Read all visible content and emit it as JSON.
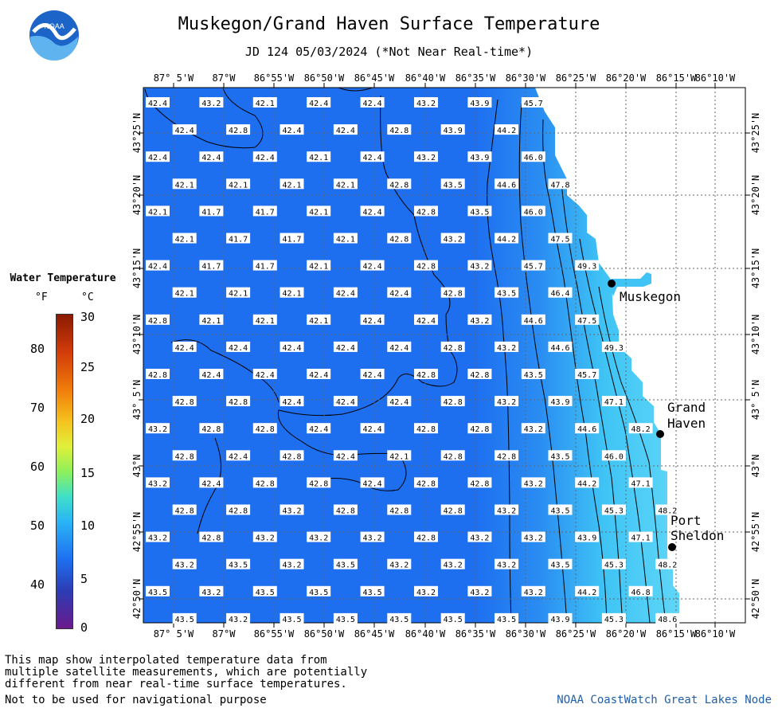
{
  "title": "Muskegon/Grand Haven Surface Temperature",
  "subtitle": "JD 124 05/03/2024 (*Not Near Real-time*)",
  "logo_text": "NOAA",
  "legend": {
    "title": "Water Temperature",
    "unit_f": "°F",
    "unit_c": "°C",
    "f_ticks": [
      "80",
      "70",
      "60",
      "50",
      "40"
    ],
    "c_ticks": [
      "30",
      "25",
      "20",
      "15",
      "10",
      "5",
      "0"
    ]
  },
  "lon_labels": [
    "87° 5'W",
    "87°W",
    "86°55'W",
    "86°50'W",
    "86°45'W",
    "86°40'W",
    "86°35'W",
    "86°30'W",
    "86°25'W",
    "86°20'W",
    "86°15'W",
    "86°10'W"
  ],
  "lat_labels": [
    "43°25'N",
    "43°20'N",
    "43°15'N",
    "43°10'N",
    "43° 5'N",
    "43°N",
    "42°55'N",
    "42°50'N"
  ],
  "cities": [
    {
      "name_lines": [
        "Muskegon"
      ]
    },
    {
      "name_lines": [
        "Grand",
        "Haven"
      ]
    },
    {
      "name_lines": [
        "Port",
        "Sheldon"
      ]
    }
  ],
  "rows": [
    [
      "42.4",
      "43.2",
      "42.1",
      "42.4",
      "42.4",
      "43.2",
      "43.9",
      "45.7"
    ],
    [
      "42.4",
      "42.8",
      "42.4",
      "42.4",
      "42.8",
      "43.9",
      "44.2"
    ],
    [
      "42.4",
      "42.4",
      "42.4",
      "42.1",
      "42.4",
      "43.2",
      "43.9",
      "46.0"
    ],
    [
      "42.1",
      "42.1",
      "42.1",
      "42.1",
      "42.8",
      "43.5",
      "44.6",
      "47.8"
    ],
    [
      "42.1",
      "41.7",
      "41.7",
      "42.1",
      "42.4",
      "42.8",
      "43.5",
      "46.0"
    ],
    [
      "42.1",
      "41.7",
      "41.7",
      "42.1",
      "42.8",
      "43.2",
      "44.2",
      "47.5"
    ],
    [
      "42.4",
      "41.7",
      "41.7",
      "42.1",
      "42.4",
      "42.8",
      "43.2",
      "45.7",
      "49.3"
    ],
    [
      "42.1",
      "42.1",
      "42.1",
      "42.4",
      "42.4",
      "42.8",
      "43.5",
      "46.4"
    ],
    [
      "42.8",
      "42.1",
      "42.1",
      "42.1",
      "42.4",
      "42.4",
      "43.2",
      "44.6",
      "47.5"
    ],
    [
      "42.4",
      "42.4",
      "42.4",
      "42.4",
      "42.4",
      "42.8",
      "43.2",
      "44.6",
      "49.3"
    ],
    [
      "42.8",
      "42.4",
      "42.4",
      "42.4",
      "42.4",
      "42.8",
      "42.8",
      "43.5",
      "45.7"
    ],
    [
      "42.8",
      "42.8",
      "42.4",
      "42.4",
      "42.4",
      "42.8",
      "43.2",
      "43.9",
      "47.1"
    ],
    [
      "43.2",
      "42.8",
      "42.8",
      "42.4",
      "42.4",
      "42.8",
      "42.8",
      "43.2",
      "44.6",
      "48.2"
    ],
    [
      "42.8",
      "42.4",
      "42.8",
      "42.4",
      "42.1",
      "42.8",
      "42.8",
      "43.5",
      "46.0"
    ],
    [
      "43.2",
      "42.4",
      "42.8",
      "42.8",
      "42.4",
      "42.8",
      "42.8",
      "43.2",
      "44.2",
      "47.1"
    ],
    [
      "42.8",
      "42.8",
      "43.2",
      "42.8",
      "42.8",
      "42.8",
      "43.2",
      "43.5",
      "45.3",
      "48.2"
    ],
    [
      "43.2",
      "42.8",
      "43.2",
      "43.2",
      "43.2",
      "42.8",
      "43.2",
      "43.2",
      "43.9",
      "47.1"
    ],
    [
      "43.2",
      "43.5",
      "43.2",
      "43.5",
      "43.2",
      "43.2",
      "43.2",
      "43.5",
      "45.3",
      "48.2"
    ],
    [
      "43.5",
      "43.2",
      "43.5",
      "43.5",
      "43.5",
      "43.2",
      "43.2",
      "43.2",
      "44.2",
      "46.8"
    ],
    [
      "43.5",
      "43.2",
      "43.5",
      "43.5",
      "43.5",
      "43.5",
      "43.5",
      "43.9",
      "45.3",
      "48.6"
    ]
  ],
  "disclaimer_lines": [
    "This map show interpolated temperature data from",
    "multiple satellite measurements, which are potentially",
    "different from near real-time surface temperatures."
  ],
  "nav_note": "Not to be used for navigational purpose",
  "credit": "NOAA CoastWatch Great Lakes Node",
  "colors": {
    "water": "#1e6ff0",
    "nearshore": "#3fc4f5",
    "logo": "#1c64c8"
  }
}
